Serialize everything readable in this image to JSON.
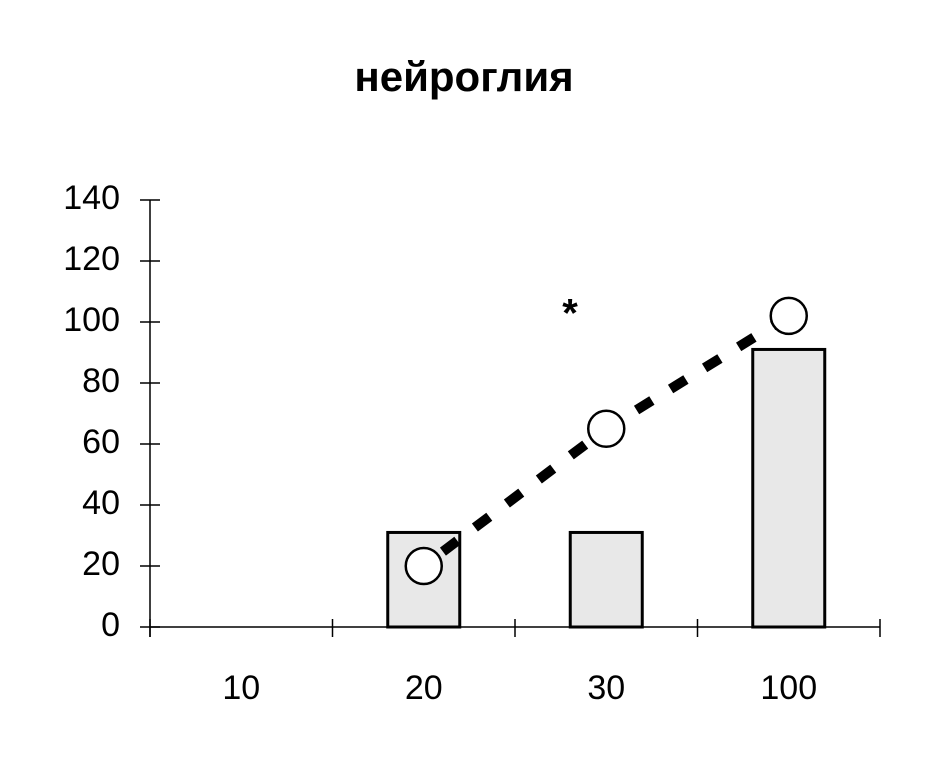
{
  "chart_data": {
    "type": "bar",
    "title": "нейроглия",
    "categories": [
      "10",
      "20",
      "30",
      "100"
    ],
    "series": [
      {
        "type": "bar",
        "color": "#e8e8e8",
        "values": [
          null,
          31,
          31,
          91
        ]
      },
      {
        "type": "line",
        "color": "#000000",
        "values": [
          null,
          20,
          65,
          102
        ]
      }
    ],
    "annotations": [
      "*"
    ],
    "ylim": [
      0,
      140
    ],
    "yticks": [
      0,
      20,
      40,
      60,
      80,
      100,
      120,
      140
    ],
    "grid": false
  }
}
